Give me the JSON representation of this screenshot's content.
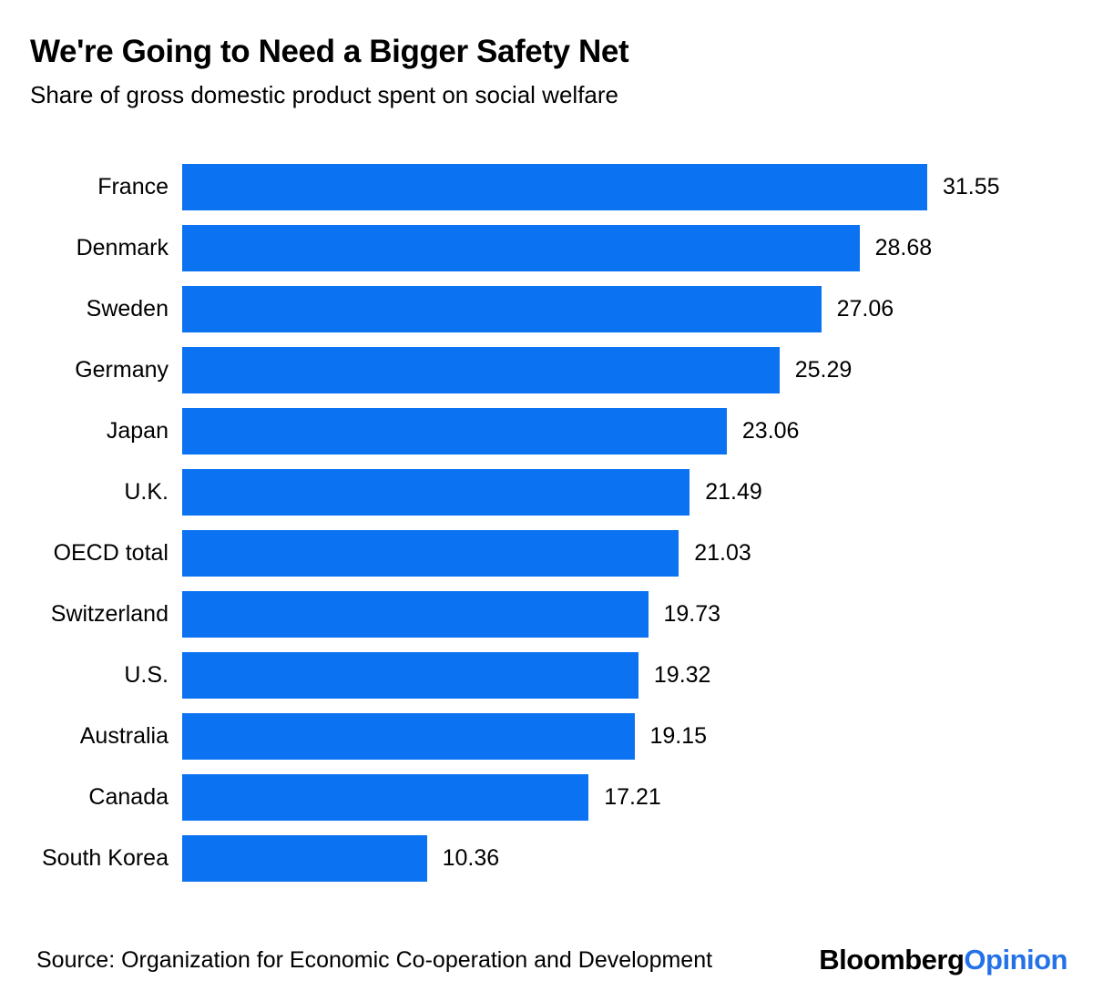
{
  "chart_data": {
    "type": "bar",
    "orientation": "horizontal",
    "title": "We're Going to Need a Bigger Safety Net",
    "subtitle": "Share of gross domestic product spent on social welfare",
    "categories": [
      "France",
      "Denmark",
      "Sweden",
      "Germany",
      "Japan",
      "U.K.",
      "OECD total",
      "Switzerland",
      "U.S.",
      "Australia",
      "Canada",
      "South Korea"
    ],
    "values": [
      31.55,
      28.68,
      27.06,
      25.29,
      23.06,
      21.49,
      21.03,
      19.73,
      19.32,
      19.15,
      17.21,
      10.36
    ],
    "value_labels": [
      "31.55",
      "28.68",
      "27.06",
      "25.29",
      "23.06",
      "21.49",
      "21.03",
      "19.73",
      "19.32",
      "19.15",
      "17.21",
      "10.36"
    ],
    "xlim": [
      0,
      31.55
    ],
    "grid": false,
    "legend": "none",
    "data_label_position": "right-of-bar",
    "bar_color": "#0b72f2"
  },
  "footer": {
    "source": "Source: Organization for Economic Co-operation and Development",
    "logo": {
      "primary": "Bloomberg",
      "secondary": "Opinion",
      "primary_color": "#000000",
      "secondary_color": "#2572e8"
    }
  }
}
